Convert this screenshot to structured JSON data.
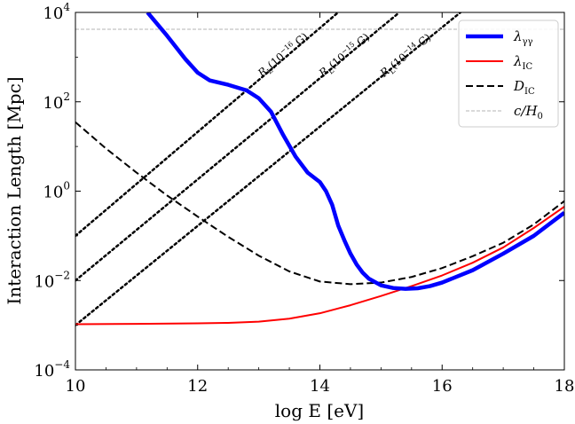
{
  "chart_data": {
    "type": "line",
    "title": "",
    "xlabel": "log E [eV]",
    "ylabel": "Interaction Length [Mpc]",
    "xlim": [
      10,
      18
    ],
    "ylim": [
      0.0001,
      10000
    ],
    "yscale": "log",
    "grid": false,
    "legend_position": "top-right",
    "x_ticks": [
      {
        "value": 10,
        "label": "10"
      },
      {
        "value": 12,
        "label": "12"
      },
      {
        "value": 14,
        "label": "14"
      },
      {
        "value": 16,
        "label": "16"
      },
      {
        "value": 18,
        "label": "18"
      }
    ],
    "y_ticks": [
      {
        "value": 0.0001,
        "base": "10",
        "exp": "−4"
      },
      {
        "value": 0.01,
        "base": "10",
        "exp": "−2"
      },
      {
        "value": 1,
        "base": "10",
        "exp": "0"
      },
      {
        "value": 100,
        "base": "10",
        "exp": "2"
      },
      {
        "value": 10000,
        "base": "10",
        "exp": "4"
      }
    ],
    "series": [
      {
        "name": "λ_γγ",
        "label_main": "λ",
        "label_sub": "γγ",
        "color": "#0000ff",
        "style": "solid",
        "x": [
          11.18,
          11.5,
          11.8,
          12.0,
          12.2,
          12.5,
          12.8,
          13.0,
          13.2,
          13.4,
          13.6,
          13.8,
          14.0,
          14.1,
          14.2,
          14.3,
          14.4,
          14.5,
          14.6,
          14.7,
          14.8,
          15.0,
          15.2,
          15.4,
          15.6,
          15.8,
          16.0,
          16.5,
          17.0,
          17.5,
          18.0
        ],
        "y": [
          10000,
          3000,
          900,
          450,
          300,
          240,
          180,
          120,
          60,
          18,
          6,
          2.6,
          1.6,
          1.0,
          0.5,
          0.17,
          0.08,
          0.04,
          0.023,
          0.015,
          0.011,
          0.0078,
          0.0068,
          0.0065,
          0.0067,
          0.0075,
          0.009,
          0.017,
          0.04,
          0.1,
          0.33
        ]
      },
      {
        "name": "λ_IC",
        "label_main": "λ",
        "label_sub": "IC",
        "color": "#ff0000",
        "style": "solid",
        "x": [
          10.0,
          11.0,
          12.0,
          12.5,
          13.0,
          13.5,
          14.0,
          14.5,
          15.0,
          15.5,
          16.0,
          16.5,
          17.0,
          17.5,
          18.0
        ],
        "y": [
          0.00105,
          0.00107,
          0.0011,
          0.00113,
          0.0012,
          0.0014,
          0.00185,
          0.0028,
          0.0045,
          0.0075,
          0.013,
          0.025,
          0.055,
          0.15,
          0.45
        ]
      },
      {
        "name": "D_IC",
        "label_main": "D",
        "label_sub": "IC",
        "color": "#000000",
        "style": "dashed",
        "x": [
          10.0,
          10.5,
          11.0,
          11.5,
          12.0,
          12.5,
          13.0,
          13.5,
          14.0,
          14.5,
          15.0,
          15.5,
          16.0,
          16.5,
          17.0,
          17.5,
          18.0
        ],
        "y": [
          35,
          9,
          2.6,
          0.8,
          0.27,
          0.095,
          0.036,
          0.016,
          0.0095,
          0.0083,
          0.009,
          0.012,
          0.019,
          0.035,
          0.07,
          0.18,
          0.6
        ]
      },
      {
        "name": "c/H_0",
        "label_main": "c/H",
        "label_sub": "0",
        "color": "#b3b3b3",
        "style": "dashed-thin",
        "x": [
          10,
          18
        ],
        "y": [
          4200,
          4200
        ]
      }
    ],
    "reference_lines": [
      {
        "label_main": "R",
        "label_sub": "L",
        "label_field": "(10",
        "label_exp": "−16",
        "label_end": " G)",
        "x": [
          10,
          14.3
        ],
        "y": [
          0.1,
          10000
        ],
        "label_x": 13.05,
        "label_y": 350
      },
      {
        "label_main": "R",
        "label_sub": "L",
        "label_field": "(10",
        "label_exp": "−15",
        "label_end": " G)",
        "x": [
          10,
          15.3
        ],
        "y": [
          0.01,
          10000
        ],
        "label_x": 14.05,
        "label_y": 350
      },
      {
        "label_main": "R",
        "label_sub": "L",
        "label_field": "(10",
        "label_exp": "−14",
        "label_end": " G)",
        "x": [
          10,
          16.3
        ],
        "y": [
          0.001,
          10000
        ],
        "label_x": 15.05,
        "label_y": 350
      }
    ]
  }
}
